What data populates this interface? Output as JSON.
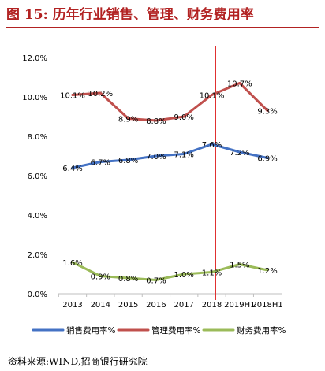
{
  "figure": {
    "title_prefix": "图 15:",
    "title_text": "历年行业销售、管理、财务费用率",
    "source": "资料来源:WIND,招商银行研究院"
  },
  "colors": {
    "title": "#B22222",
    "sales": "#4472C4",
    "admin": "#C0504D",
    "finance": "#9BBB59",
    "marker_line": "#E03030"
  },
  "chart_data": {
    "type": "line",
    "categories": [
      "2013",
      "2014",
      "2015",
      "2016",
      "2017",
      "2018",
      "2019H1",
      "2018H1"
    ],
    "ylim": [
      0,
      12
    ],
    "yticks": [
      "0.0%",
      "2.0%",
      "4.0%",
      "6.0%",
      "8.0%",
      "10.0%",
      "12.0%"
    ],
    "ytick_values": [
      0,
      2,
      4,
      6,
      8,
      10,
      12
    ],
    "grid": false,
    "legend_position": "bottom",
    "vertical_marker_category": "2018",
    "series": [
      {
        "name": "销售费用率%",
        "values": [
          6.4,
          6.7,
          6.8,
          7.0,
          7.1,
          7.6,
          7.2,
          6.9
        ],
        "labels": [
          "6.4%",
          "6.7%",
          "6.8%",
          "7.0%",
          "7.1%",
          "7.6%",
          "7.2%",
          "6.9%"
        ]
      },
      {
        "name": "管理费用率%",
        "values": [
          10.1,
          10.2,
          8.9,
          8.8,
          9.0,
          10.1,
          10.7,
          9.3
        ],
        "labels": [
          "10.1%",
          "10.2%",
          "8.9%",
          "8.8%",
          "9.0%",
          "10.1%",
          "10.7%",
          "9.3%"
        ]
      },
      {
        "name": "财务费用率%",
        "values": [
          1.6,
          0.9,
          0.8,
          0.7,
          1.0,
          1.1,
          1.5,
          1.2
        ],
        "labels": [
          "1.6%",
          "0.9%",
          "0.8%",
          "0.7%",
          "1.0%",
          "1.1%",
          "1.5%",
          "1.2%"
        ]
      }
    ]
  }
}
